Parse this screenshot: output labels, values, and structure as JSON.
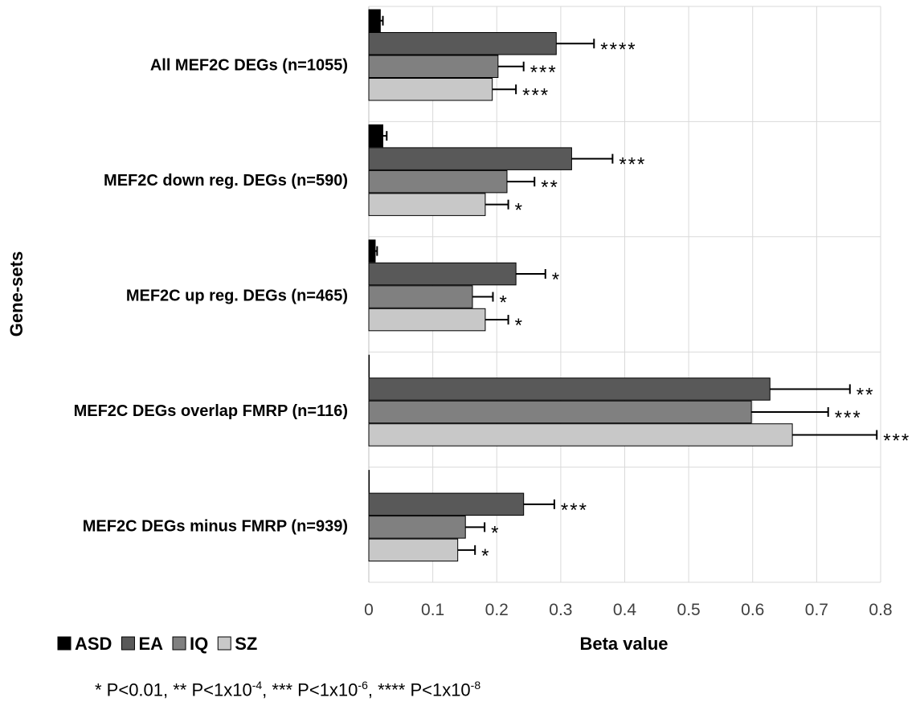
{
  "chart_data": {
    "type": "bar",
    "orientation": "horizontal",
    "ylabel": "Gene-sets",
    "xlabel": "Beta value",
    "xlim": [
      0,
      0.8
    ],
    "xticks": [
      "0",
      "0.1",
      "0.2",
      "0.3",
      "0.4",
      "0.5",
      "0.6",
      "0.7",
      "0.8"
    ],
    "grid": true,
    "legend_position": "bottom-left",
    "categories": [
      "All MEF2C DEGs (n=1055)",
      "MEF2C down reg. DEGs (n=590)",
      "MEF2C up reg. DEGs (n=465)",
      "MEF2C DEGs overlap FMRP (n=116)",
      "MEF2C DEGs minus FMRP (n=939)"
    ],
    "series": [
      {
        "name": "ASD",
        "color": "#000000",
        "values": [
          0.018,
          0.022,
          0.01,
          0.0,
          0.0
        ],
        "errors": [
          0.004,
          0.006,
          0.003,
          0.0,
          0.0
        ],
        "stars": [
          "",
          "",
          "",
          "",
          ""
        ]
      },
      {
        "name": "EA",
        "color": "#595959",
        "values": [
          0.293,
          0.317,
          0.23,
          0.627,
          0.242
        ],
        "errors": [
          0.059,
          0.064,
          0.046,
          0.125,
          0.048
        ],
        "stars": [
          "****",
          "***",
          "*",
          "**",
          "***"
        ]
      },
      {
        "name": "IQ",
        "color": "#808080",
        "values": [
          0.202,
          0.216,
          0.162,
          0.598,
          0.151
        ],
        "errors": [
          0.04,
          0.043,
          0.032,
          0.12,
          0.03
        ],
        "stars": [
          "***",
          "**",
          "*",
          "***",
          "*"
        ]
      },
      {
        "name": "SZ",
        "color": "#c8c8c8",
        "values": [
          0.193,
          0.182,
          0.182,
          0.662,
          0.139
        ],
        "errors": [
          0.037,
          0.036,
          0.036,
          0.132,
          0.027
        ],
        "stars": [
          "***",
          "*",
          "*",
          "***",
          "*"
        ]
      }
    ]
  },
  "footnote": {
    "p1": "* P<0.01, ** P<1x10",
    "e1": "-4",
    "p2": ", *** P<1x10",
    "e2": "-6",
    "p3": ", **** P<1x10",
    "e3": "-8"
  }
}
